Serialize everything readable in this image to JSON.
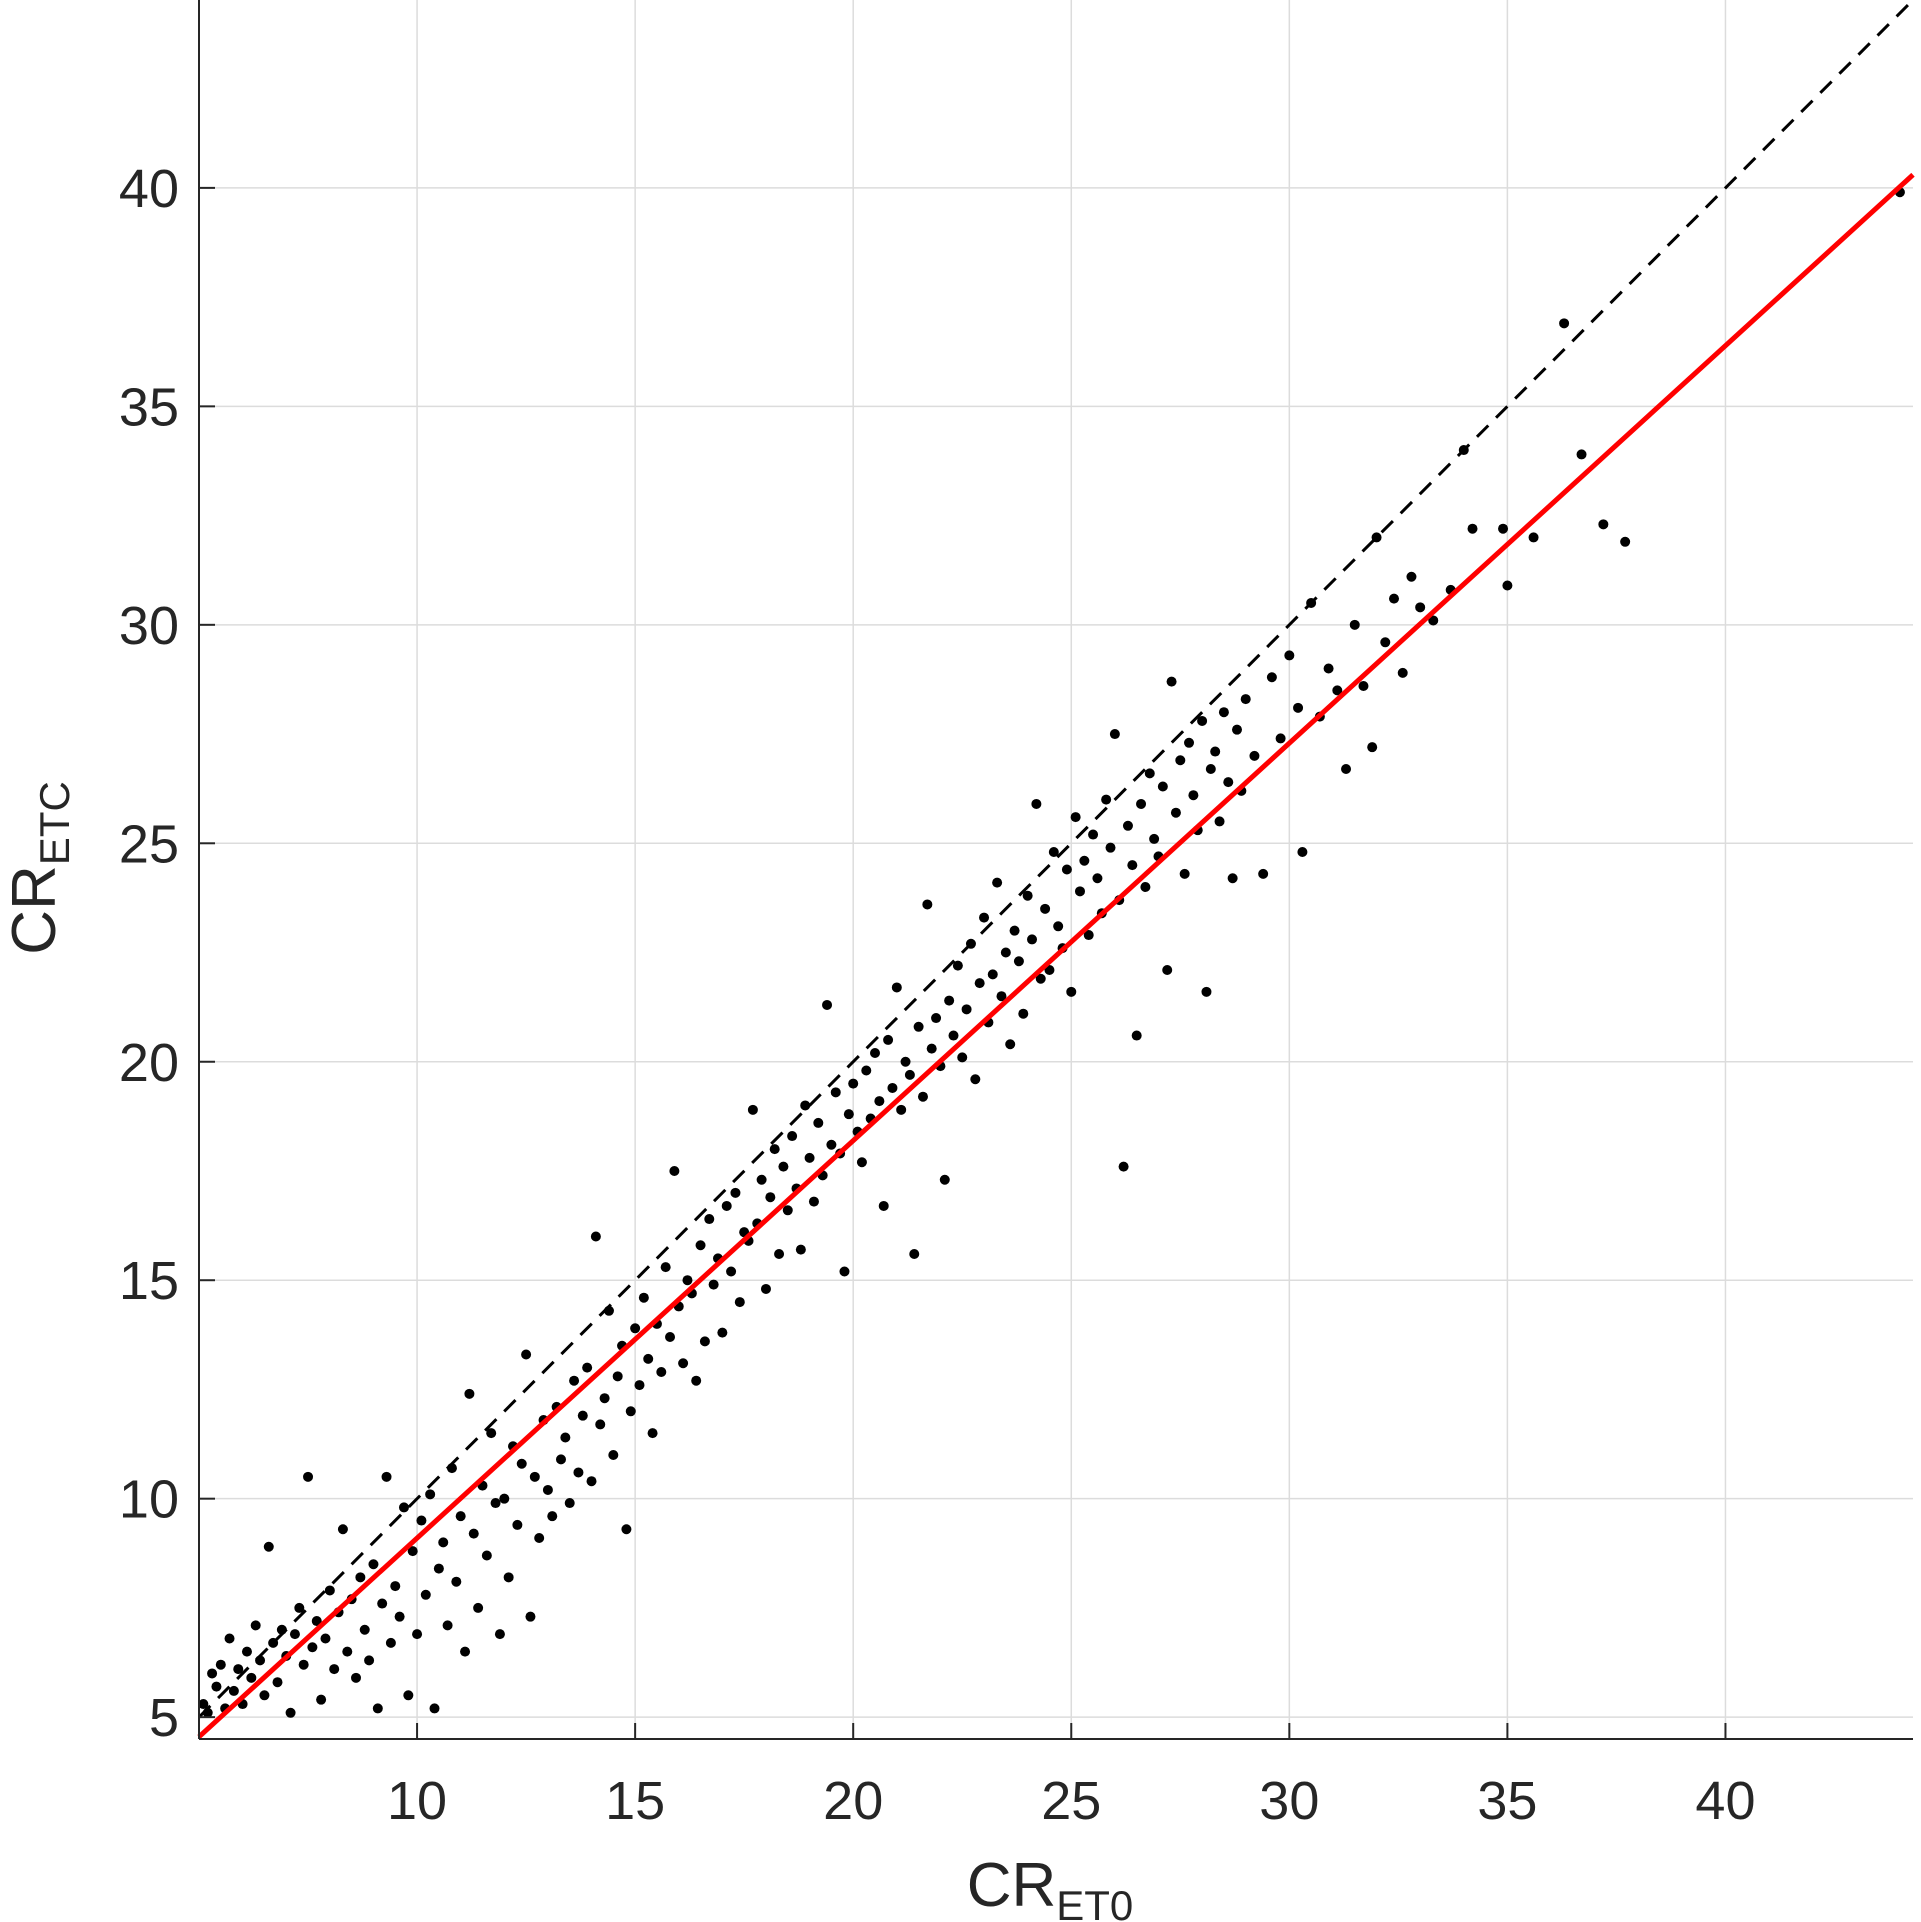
{
  "chart_data": {
    "type": "scatter",
    "xlabel": {
      "main": "CR",
      "sub": "ET0"
    },
    "ylabel": {
      "main": "CR",
      "sub": "ETC"
    },
    "xlim": [
      5,
      44.3
    ],
    "ylim": [
      4.5,
      44.3
    ],
    "xticks": [
      10,
      15,
      20,
      25,
      30,
      35,
      40
    ],
    "yticks": [
      5,
      10,
      15,
      20,
      25,
      30,
      35,
      40
    ],
    "grid": true,
    "colors": {
      "points": "#000000",
      "fit_line": "#ff0000",
      "reference_line": "#000000",
      "grid": "#dcdcdc"
    },
    "fit_line": {
      "name": "",
      "x": [
        5,
        44.3
      ],
      "y": [
        4.55,
        40.3
      ],
      "style": "solid",
      "color": "#ff0000"
    },
    "reference_line": {
      "name": "",
      "x": [
        5,
        44.3
      ],
      "y": [
        5,
        44.3
      ],
      "style": "dashed",
      "color": "#000000"
    },
    "series": [
      {
        "name": "",
        "points": [
          [
            5.1,
            5.3
          ],
          [
            5.2,
            5.1
          ],
          [
            5.3,
            6.0
          ],
          [
            5.4,
            5.7
          ],
          [
            5.5,
            6.2
          ],
          [
            5.6,
            5.2
          ],
          [
            5.7,
            6.8
          ],
          [
            5.8,
            5.6
          ],
          [
            5.9,
            6.1
          ],
          [
            6.0,
            5.3
          ],
          [
            6.1,
            6.5
          ],
          [
            6.2,
            5.9
          ],
          [
            6.3,
            7.1
          ],
          [
            6.4,
            6.3
          ],
          [
            6.5,
            5.5
          ],
          [
            6.6,
            8.9
          ],
          [
            6.7,
            6.7
          ],
          [
            6.8,
            5.8
          ],
          [
            6.9,
            7.0
          ],
          [
            7.0,
            6.4
          ],
          [
            7.1,
            5.1
          ],
          [
            7.2,
            6.9
          ],
          [
            7.3,
            7.5
          ],
          [
            7.4,
            6.2
          ],
          [
            7.5,
            10.5
          ],
          [
            7.6,
            6.6
          ],
          [
            7.7,
            7.2
          ],
          [
            7.8,
            5.4
          ],
          [
            7.9,
            6.8
          ],
          [
            8.0,
            7.9
          ],
          [
            8.1,
            6.1
          ],
          [
            8.2,
            7.4
          ],
          [
            8.3,
            9.3
          ],
          [
            8.4,
            6.5
          ],
          [
            8.5,
            7.7
          ],
          [
            8.6,
            5.9
          ],
          [
            8.7,
            8.2
          ],
          [
            8.8,
            7.0
          ],
          [
            8.9,
            6.3
          ],
          [
            9.0,
            8.5
          ],
          [
            9.1,
            5.2
          ],
          [
            9.2,
            7.6
          ],
          [
            9.3,
            10.5
          ],
          [
            9.4,
            6.7
          ],
          [
            9.5,
            8.0
          ],
          [
            9.6,
            7.3
          ],
          [
            9.7,
            9.8
          ],
          [
            9.8,
            5.5
          ],
          [
            9.9,
            8.8
          ],
          [
            10.0,
            6.9
          ],
          [
            10.1,
            9.5
          ],
          [
            10.2,
            7.8
          ],
          [
            10.3,
            10.1
          ],
          [
            10.4,
            5.2
          ],
          [
            10.5,
            8.4
          ],
          [
            10.6,
            9.0
          ],
          [
            10.7,
            7.1
          ],
          [
            10.8,
            10.7
          ],
          [
            10.9,
            8.1
          ],
          [
            11.0,
            9.6
          ],
          [
            11.1,
            6.5
          ],
          [
            11.2,
            12.4
          ],
          [
            11.3,
            9.2
          ],
          [
            11.4,
            7.5
          ],
          [
            11.5,
            10.3
          ],
          [
            11.6,
            8.7
          ],
          [
            11.7,
            11.5
          ],
          [
            11.8,
            9.9
          ],
          [
            11.9,
            6.9
          ],
          [
            12.0,
            10.0
          ],
          [
            12.1,
            8.2
          ],
          [
            12.2,
            11.2
          ],
          [
            12.3,
            9.4
          ],
          [
            12.4,
            10.8
          ],
          [
            12.5,
            13.3
          ],
          [
            12.6,
            7.3
          ],
          [
            12.7,
            10.5
          ],
          [
            12.8,
            9.1
          ],
          [
            12.9,
            11.8
          ],
          [
            13.0,
            10.2
          ],
          [
            13.1,
            9.6
          ],
          [
            13.2,
            12.1
          ],
          [
            13.3,
            10.9
          ],
          [
            13.4,
            11.4
          ],
          [
            13.5,
            9.9
          ],
          [
            13.6,
            12.7
          ],
          [
            13.7,
            10.6
          ],
          [
            13.8,
            11.9
          ],
          [
            13.9,
            13.0
          ],
          [
            14.0,
            10.4
          ],
          [
            14.1,
            16.0
          ],
          [
            14.2,
            11.7
          ],
          [
            14.3,
            12.3
          ],
          [
            14.4,
            14.3
          ],
          [
            14.5,
            11.0
          ],
          [
            14.6,
            12.8
          ],
          [
            14.7,
            13.5
          ],
          [
            14.8,
            9.3
          ],
          [
            14.9,
            12.0
          ],
          [
            15.0,
            13.9
          ],
          [
            15.1,
            12.6
          ],
          [
            15.2,
            14.6
          ],
          [
            15.3,
            13.2
          ],
          [
            15.4,
            11.5
          ],
          [
            15.5,
            14.0
          ],
          [
            15.6,
            12.9
          ],
          [
            15.7,
            15.3
          ],
          [
            15.8,
            13.7
          ],
          [
            15.9,
            17.5
          ],
          [
            16.0,
            14.4
          ],
          [
            16.1,
            13.1
          ],
          [
            16.2,
            15.0
          ],
          [
            16.3,
            14.7
          ],
          [
            16.4,
            12.7
          ],
          [
            16.5,
            15.8
          ],
          [
            16.6,
            13.6
          ],
          [
            16.7,
            16.4
          ],
          [
            16.8,
            14.9
          ],
          [
            16.9,
            15.5
          ],
          [
            17.0,
            13.8
          ],
          [
            17.1,
            16.7
          ],
          [
            17.2,
            15.2
          ],
          [
            17.3,
            17.0
          ],
          [
            17.4,
            14.5
          ],
          [
            17.5,
            16.1
          ],
          [
            17.6,
            15.9
          ],
          [
            17.7,
            18.9
          ],
          [
            17.8,
            16.3
          ],
          [
            17.9,
            17.3
          ],
          [
            18.0,
            14.8
          ],
          [
            18.1,
            16.9
          ],
          [
            18.2,
            18.0
          ],
          [
            18.3,
            15.6
          ],
          [
            18.4,
            17.6
          ],
          [
            18.5,
            16.6
          ],
          [
            18.6,
            18.3
          ],
          [
            18.7,
            17.1
          ],
          [
            18.8,
            15.7
          ],
          [
            18.9,
            19.0
          ],
          [
            19.0,
            17.8
          ],
          [
            19.1,
            16.8
          ],
          [
            19.2,
            18.6
          ],
          [
            19.3,
            17.4
          ],
          [
            19.4,
            21.3
          ],
          [
            19.5,
            18.1
          ],
          [
            19.6,
            19.3
          ],
          [
            19.7,
            17.9
          ],
          [
            19.8,
            15.2
          ],
          [
            19.9,
            18.8
          ],
          [
            20.0,
            19.5
          ],
          [
            20.1,
            18.4
          ],
          [
            20.2,
            17.7
          ],
          [
            20.3,
            19.8
          ],
          [
            20.4,
            18.7
          ],
          [
            20.5,
            20.2
          ],
          [
            20.6,
            19.1
          ],
          [
            20.7,
            16.7
          ],
          [
            20.8,
            20.5
          ],
          [
            20.9,
            19.4
          ],
          [
            21.0,
            21.7
          ],
          [
            21.1,
            18.9
          ],
          [
            21.2,
            20.0
          ],
          [
            21.3,
            19.7
          ],
          [
            21.4,
            15.6
          ],
          [
            21.5,
            20.8
          ],
          [
            21.6,
            19.2
          ],
          [
            21.7,
            23.6
          ],
          [
            21.8,
            20.3
          ],
          [
            21.9,
            21.0
          ],
          [
            22.0,
            19.9
          ],
          [
            22.1,
            17.3
          ],
          [
            22.2,
            21.4
          ],
          [
            22.3,
            20.6
          ],
          [
            22.4,
            22.2
          ],
          [
            22.5,
            20.1
          ],
          [
            22.6,
            21.2
          ],
          [
            22.7,
            22.7
          ],
          [
            22.8,
            19.6
          ],
          [
            22.9,
            21.8
          ],
          [
            23.0,
            23.3
          ],
          [
            23.1,
            20.9
          ],
          [
            23.2,
            22.0
          ],
          [
            23.3,
            24.1
          ],
          [
            23.4,
            21.5
          ],
          [
            23.5,
            22.5
          ],
          [
            23.6,
            20.4
          ],
          [
            23.7,
            23.0
          ],
          [
            23.8,
            22.3
          ],
          [
            23.9,
            21.1
          ],
          [
            24.0,
            23.8
          ],
          [
            24.1,
            22.8
          ],
          [
            24.2,
            25.9
          ],
          [
            24.3,
            21.9
          ],
          [
            24.4,
            23.5
          ],
          [
            24.5,
            22.1
          ],
          [
            24.6,
            24.8
          ],
          [
            24.7,
            23.1
          ],
          [
            24.8,
            22.6
          ],
          [
            24.9,
            24.4
          ],
          [
            25.0,
            21.6
          ],
          [
            25.1,
            25.6
          ],
          [
            25.2,
            23.9
          ],
          [
            25.3,
            24.6
          ],
          [
            25.4,
            22.9
          ],
          [
            25.5,
            25.2
          ],
          [
            25.6,
            24.2
          ],
          [
            25.7,
            23.4
          ],
          [
            25.8,
            26.0
          ],
          [
            25.9,
            24.9
          ],
          [
            26.0,
            27.5
          ],
          [
            26.1,
            23.7
          ],
          [
            26.2,
            17.6
          ],
          [
            26.3,
            25.4
          ],
          [
            26.4,
            24.5
          ],
          [
            26.5,
            20.6
          ],
          [
            26.6,
            25.9
          ],
          [
            26.7,
            24.0
          ],
          [
            26.8,
            26.6
          ],
          [
            26.9,
            25.1
          ],
          [
            27.0,
            24.7
          ],
          [
            27.1,
            26.3
          ],
          [
            27.2,
            22.1
          ],
          [
            27.3,
            28.7
          ],
          [
            27.4,
            25.7
          ],
          [
            27.5,
            26.9
          ],
          [
            27.6,
            24.3
          ],
          [
            27.7,
            27.3
          ],
          [
            27.8,
            26.1
          ],
          [
            27.9,
            25.3
          ],
          [
            28.0,
            27.8
          ],
          [
            28.1,
            21.6
          ],
          [
            28.2,
            26.7
          ],
          [
            28.3,
            27.1
          ],
          [
            28.4,
            25.5
          ],
          [
            28.5,
            28.0
          ],
          [
            28.6,
            26.4
          ],
          [
            28.7,
            24.2
          ],
          [
            28.8,
            27.6
          ],
          [
            28.9,
            26.2
          ],
          [
            29.0,
            28.3
          ],
          [
            29.2,
            27.0
          ],
          [
            29.4,
            24.3
          ],
          [
            29.6,
            28.8
          ],
          [
            29.8,
            27.4
          ],
          [
            30.0,
            29.3
          ],
          [
            30.2,
            28.1
          ],
          [
            30.3,
            24.8
          ],
          [
            30.5,
            30.5
          ],
          [
            30.7,
            27.9
          ],
          [
            30.9,
            29.0
          ],
          [
            31.1,
            28.5
          ],
          [
            31.3,
            26.7
          ],
          [
            31.5,
            30.0
          ],
          [
            31.7,
            28.6
          ],
          [
            31.9,
            27.2
          ],
          [
            32.0,
            32.0
          ],
          [
            32.2,
            29.6
          ],
          [
            32.4,
            30.6
          ],
          [
            32.6,
            28.9
          ],
          [
            32.8,
            31.1
          ],
          [
            33.0,
            30.4
          ],
          [
            33.3,
            30.1
          ],
          [
            33.7,
            30.8
          ],
          [
            34.0,
            34.0
          ],
          [
            34.2,
            32.2
          ],
          [
            34.9,
            32.2
          ],
          [
            35.0,
            30.9
          ],
          [
            35.6,
            32.0
          ],
          [
            36.3,
            36.9
          ],
          [
            36.7,
            33.9
          ],
          [
            37.2,
            32.3
          ],
          [
            37.7,
            31.9
          ],
          [
            44.0,
            39.9
          ]
        ]
      }
    ]
  }
}
